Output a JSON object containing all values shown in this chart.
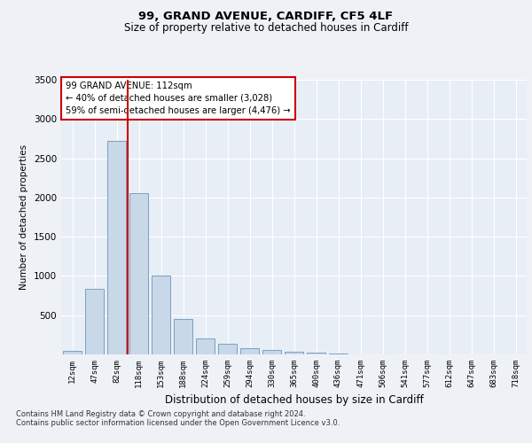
{
  "title1": "99, GRAND AVENUE, CARDIFF, CF5 4LF",
  "title2": "Size of property relative to detached houses in Cardiff",
  "xlabel": "Distribution of detached houses by size in Cardiff",
  "ylabel": "Number of detached properties",
  "categories": [
    "12sqm",
    "47sqm",
    "82sqm",
    "118sqm",
    "153sqm",
    "188sqm",
    "224sqm",
    "259sqm",
    "294sqm",
    "330sqm",
    "365sqm",
    "400sqm",
    "436sqm",
    "471sqm",
    "506sqm",
    "541sqm",
    "577sqm",
    "612sqm",
    "647sqm",
    "683sqm",
    "718sqm"
  ],
  "values": [
    50,
    830,
    2720,
    2060,
    1000,
    450,
    200,
    130,
    75,
    60,
    30,
    20,
    10,
    5,
    0,
    0,
    0,
    0,
    0,
    0,
    0
  ],
  "bar_color": "#c8d8e8",
  "bar_edge_color": "#7aA0c0",
  "vline_color": "#cc0000",
  "annotation_text": "99 GRAND AVENUE: 112sqm\n← 40% of detached houses are smaller (3,028)\n59% of semi-detached houses are larger (4,476) →",
  "annotation_box_color": "#ffffff",
  "annotation_box_edge": "#cc0000",
  "ylim": [
    0,
    3500
  ],
  "yticks": [
    0,
    500,
    1000,
    1500,
    2000,
    2500,
    3000,
    3500
  ],
  "footer1": "Contains HM Land Registry data © Crown copyright and database right 2024.",
  "footer2": "Contains public sector information licensed under the Open Government Licence v3.0.",
  "background_color": "#eef2f7",
  "plot_bg_color": "#e8eef6",
  "grid_color": "#ffffff"
}
